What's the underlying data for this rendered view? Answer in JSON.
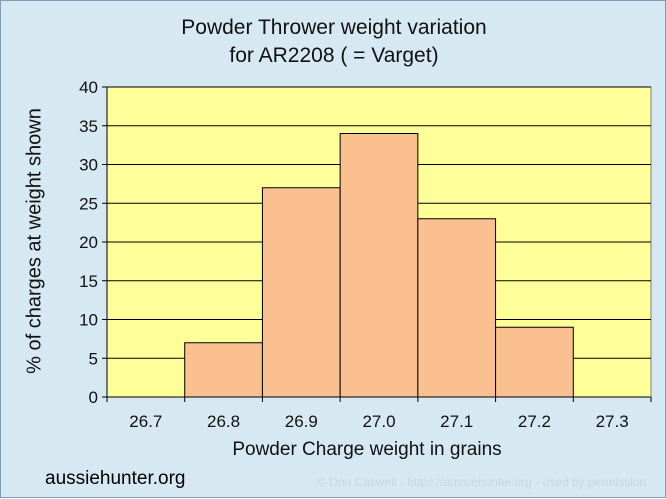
{
  "chart_data": {
    "type": "bar",
    "title_line1": "Powder Thrower weight variation",
    "title_line2": "for AR2208 ( = Varget)",
    "xlabel": "Powder Charge weight in grains",
    "ylabel": "% of charges at weight shown",
    "categories": [
      "26.7",
      "26.8",
      "26.9",
      "27.0",
      "27.1",
      "27.2",
      "27.3"
    ],
    "values": [
      0,
      7,
      27,
      34,
      23,
      9,
      0
    ],
    "ylim": [
      0,
      40
    ],
    "yticks": [
      0,
      5,
      10,
      15,
      20,
      25,
      30,
      35,
      40
    ],
    "grid": true,
    "plot_background": "#ffff99",
    "bar_color": "#fac090",
    "bar_edge": "#000000"
  },
  "footer": {
    "site": "aussiehunter.org",
    "credit": "© Don Caswell - https://aussiehunter.org - used by permission"
  }
}
